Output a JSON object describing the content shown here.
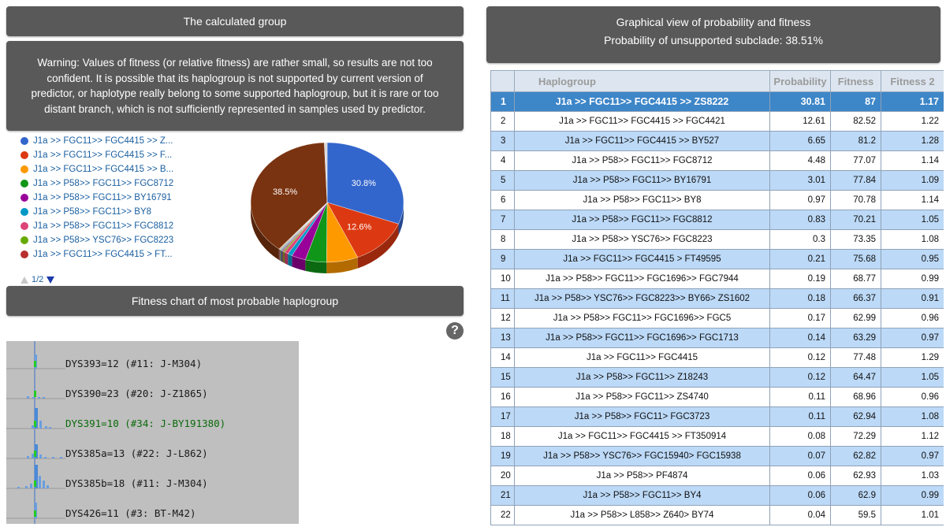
{
  "calc_panel": {
    "title": "The calculated group"
  },
  "warning": {
    "text": "Warning: Values of fitness (or relative fitness) are rather small, so results are not too confident. It is possible that its haplogroup is not supported by current version of predictor, or haplotype really belong to some supported haplogroup, but it is rare or too distant branch, which is not sufficiently represented in samples used by predictor."
  },
  "legend": {
    "items": [
      {
        "label": "J1a >> FGC11>> FGC4415 >> Z...",
        "color": "#3366cc"
      },
      {
        "label": "J1a >> FGC11>> FGC4415 >> F...",
        "color": "#dc3912"
      },
      {
        "label": "J1a >> FGC11>> FGC4415 >> B...",
        "color": "#ff9900"
      },
      {
        "label": "J1a >> P58>> FGC11>> FGC8712",
        "color": "#109618"
      },
      {
        "label": "J1a >> P58>> FGC11>> BY16791",
        "color": "#990099"
      },
      {
        "label": "J1a >> P58>> FGC11>> BY8",
        "color": "#0099c6"
      },
      {
        "label": "J1a >> P58>> FGC11>> FGC8812",
        "color": "#dd4477"
      },
      {
        "label": "J1a >> P58>> YSC76>> FGC8223",
        "color": "#66aa00"
      },
      {
        "label": "J1a >> FGC11>> FGC4415 > FT...",
        "color": "#b82e2e"
      }
    ],
    "pager": "1/2"
  },
  "pie": {
    "labels": [
      "30.8%",
      "12.6%",
      "38.5%"
    ],
    "slices": [
      {
        "value": 30.81,
        "color": "#3366cc"
      },
      {
        "value": 12.61,
        "color": "#dc3912"
      },
      {
        "value": 6.65,
        "color": "#ff9900"
      },
      {
        "value": 4.48,
        "color": "#109618"
      },
      {
        "value": 3.01,
        "color": "#990099"
      },
      {
        "value": 0.97,
        "color": "#0099c6"
      },
      {
        "value": 0.83,
        "color": "#dd4477"
      },
      {
        "value": 0.3,
        "color": "#66aa00"
      },
      {
        "value": 0.21,
        "color": "#b82e2e"
      },
      {
        "value": 0.19,
        "color": "#316395"
      },
      {
        "value": 0.18,
        "color": "#994499"
      },
      {
        "value": 0.17,
        "color": "#22aa99"
      },
      {
        "value": 0.14,
        "color": "#aaaa11"
      },
      {
        "value": 0.12,
        "color": "#6633cc"
      },
      {
        "value": 0.12,
        "color": "#e67300"
      },
      {
        "value": 38.51,
        "color": "#7a3310"
      },
      {
        "value": 0.6,
        "color": "#d8d8d8"
      }
    ]
  },
  "fitness_panel": {
    "title": "Fitness chart of most probable haplogroup"
  },
  "help": {
    "icon": "?"
  },
  "fitness_chart": {
    "rows": [
      {
        "label": "DYS393=12 (#11: J-M304)",
        "color": "#1a1a1a"
      },
      {
        "label": "DYS390=23 (#20: J-Z1865)",
        "color": "#1a1a1a"
      },
      {
        "label": "DYS391=10 (#34: J-BY191380)",
        "color": "#0a6a0a"
      },
      {
        "label": "DYS385a=13 (#22: J-L862)",
        "color": "#1a1a1a"
      },
      {
        "label": "DYS385b=18 (#11: J-M304)",
        "color": "#1a1a1a"
      },
      {
        "label": "DYS426=11 (#3: BT-M42)",
        "color": "#1a1a1a"
      }
    ]
  },
  "graph_panel": {
    "title": "Graphical view of probability and fitness",
    "subtitle": "Probability of unsupported subclade: 38.51%"
  },
  "table": {
    "headers": [
      "",
      "Haplogroup",
      "Probability",
      "Fitness",
      "Fitness 2"
    ],
    "rows": [
      [
        "1",
        "J1a >> FGC11>> FGC4415 >> ZS8222",
        "30.81",
        "87",
        "1.17"
      ],
      [
        "2",
        "J1a >> FGC11>> FGC4415 >> FGC4421",
        "12.61",
        "82.52",
        "1.22"
      ],
      [
        "3",
        "J1a >> FGC11>> FGC4415 >> BY527",
        "6.65",
        "81.2",
        "1.28"
      ],
      [
        "4",
        "J1a >> P58>> FGC11>> FGC8712",
        "4.48",
        "77.07",
        "1.14"
      ],
      [
        "5",
        "J1a >> P58>> FGC11>> BY16791",
        "3.01",
        "77.84",
        "1.09"
      ],
      [
        "6",
        "J1a >> P58>> FGC11>> BY8",
        "0.97",
        "70.78",
        "1.14"
      ],
      [
        "7",
        "J1a >> P58>> FGC11>> FGC8812",
        "0.83",
        "70.21",
        "1.05"
      ],
      [
        "8",
        "J1a >> P58>> YSC76>> FGC8223",
        "0.3",
        "73.35",
        "1.08"
      ],
      [
        "9",
        "J1a >> FGC11>> FGC4415 > FT49595",
        "0.21",
        "75.68",
        "0.95"
      ],
      [
        "10",
        "J1a >> P58>> FGC11>> FGC1696>> FGC7944",
        "0.19",
        "68.77",
        "0.99"
      ],
      [
        "11",
        "J1a >> P58>> YSC76>> FGC8223>> BY66> ZS1602",
        "0.18",
        "66.37",
        "0.91"
      ],
      [
        "12",
        "J1a >> P58>> FGC11>> FGC1696>> FGC5",
        "0.17",
        "62.99",
        "0.96"
      ],
      [
        "13",
        "J1a >> P58>> FGC11>> FGC1696>> FGC1713",
        "0.14",
        "63.29",
        "0.97"
      ],
      [
        "14",
        "J1a >> FGC11>> FGC4415",
        "0.12",
        "77.48",
        "1.29"
      ],
      [
        "15",
        "J1a >> P58>> FGC11>> Z18243",
        "0.12",
        "64.47",
        "1.05"
      ],
      [
        "16",
        "J1a >> P58>> FGC11>> ZS4740",
        "0.11",
        "68.96",
        "0.96"
      ],
      [
        "17",
        "J1a >> P58>> FGC11> FGC3723",
        "0.11",
        "62.94",
        "1.08"
      ],
      [
        "18",
        "J1a >> FGC11>> FGC4415 >> FT350914",
        "0.08",
        "72.29",
        "1.12"
      ],
      [
        "19",
        "J1a >> P58>> YSC76>> FGC15940> FGC15938",
        "0.07",
        "62.82",
        "0.97"
      ],
      [
        "20",
        "J1a >> P58>> PF4874",
        "0.06",
        "62.93",
        "1.03"
      ],
      [
        "21",
        "J1a >> P58>> FGC11>> BY4",
        "0.06",
        "62.9",
        "0.99"
      ],
      [
        "22",
        "J1a >> P58>> L858>> Z640> BY74",
        "0.04",
        "59.5",
        "1.01"
      ]
    ]
  }
}
